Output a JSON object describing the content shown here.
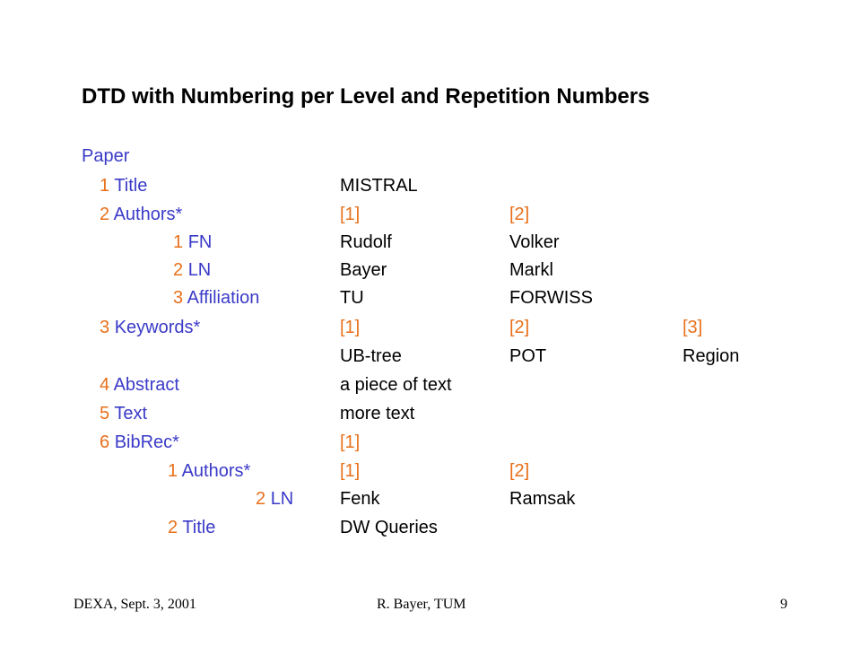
{
  "title": "DTD with Numbering per Level and Repetition Numbers",
  "root": "Paper",
  "rows": [
    {
      "num": "1",
      "label": "Title",
      "values": [
        "MISTRAL"
      ]
    },
    {
      "num": "2",
      "label": "Authors*",
      "values": [
        "[1]",
        "[2]"
      ]
    },
    {
      "num": "1",
      "label": "FN",
      "values": [
        "Rudolf",
        "Volker"
      ]
    },
    {
      "num": "2",
      "label": "LN",
      "values": [
        "Bayer",
        "Markl"
      ]
    },
    {
      "num": "3",
      "label": "Affiliation",
      "values": [
        "TU",
        "FORWISS"
      ]
    },
    {
      "num": "3",
      "label": "Keywords*",
      "values": [
        "[1]",
        "[2]",
        "[3]"
      ]
    },
    {
      "num": "",
      "label": "",
      "values": [
        "UB-tree",
        "POT",
        "Region"
      ]
    },
    {
      "num": "4",
      "label": "Abstract",
      "values": [
        "a piece of text"
      ]
    },
    {
      "num": "5",
      "label": "Text",
      "values": [
        "more text"
      ]
    },
    {
      "num": "6",
      "label": "BibRec*",
      "values": [
        "[1]"
      ]
    },
    {
      "num": "1",
      "label": "Authors*",
      "values": [
        "[1]",
        "[2]"
      ]
    },
    {
      "num": "2",
      "label": "LN",
      "values": [
        "Fenk",
        "Ramsak"
      ]
    },
    {
      "num": "2",
      "label": "Title",
      "values": [
        "DW Queries"
      ]
    }
  ],
  "footer": {
    "left": "DEXA, Sept. 3, 2001",
    "center": "R. Bayer, TUM",
    "page": "9"
  }
}
